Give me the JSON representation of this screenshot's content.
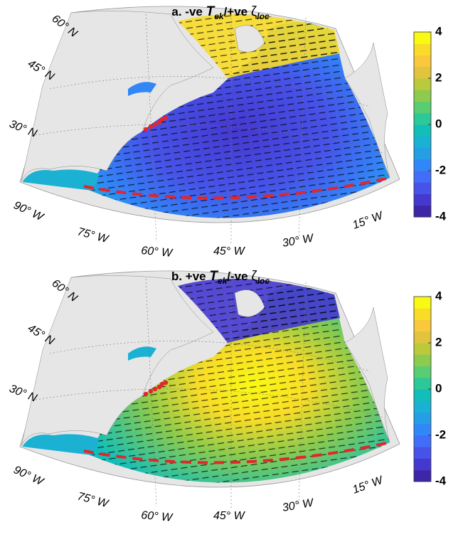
{
  "panels": [
    {
      "title": {
        "prefix": "a. -ve ",
        "t": "T",
        "t_sub": "ek",
        "mid": "/+ve ",
        "zeta": "ζ",
        "zeta_sub": "loc"
      },
      "lat_labels": [
        "60° N",
        "45° N",
        "30° N"
      ],
      "lon_labels": [
        "90° W",
        "75° W",
        "60° W",
        "45° W",
        "30° W",
        "15° W"
      ],
      "colorbar": {
        "lim": [
          -4,
          4
        ],
        "ticks": [
          4,
          2,
          0,
          -2,
          -4
        ]
      }
    },
    {
      "title": {
        "prefix": "b. +ve ",
        "t": "T",
        "t_sub": "ek",
        "mid": "/-ve ",
        "zeta": "ζ",
        "zeta_sub": "loc"
      },
      "lat_labels": [
        "60° N",
        "45° N",
        "30° N"
      ],
      "lon_labels": [
        "90° W",
        "75° W",
        "60° W",
        "45° W",
        "30° W",
        "15° W"
      ],
      "colorbar": {
        "lim": [
          -4,
          4
        ],
        "ticks": [
          4,
          2,
          0,
          -2,
          -4
        ]
      }
    }
  ],
  "colormap": [
    "#3e26a8",
    "#4538cf",
    "#4753e8",
    "#416df8",
    "#3187f8",
    "#259ee5",
    "#1ab1d3",
    "#12bfb8",
    "#2dc897",
    "#5acc72",
    "#8ccb4d",
    "#baca3c",
    "#e1c33e",
    "#f9c83c",
    "#f8dc28",
    "#f9f914"
  ]
}
